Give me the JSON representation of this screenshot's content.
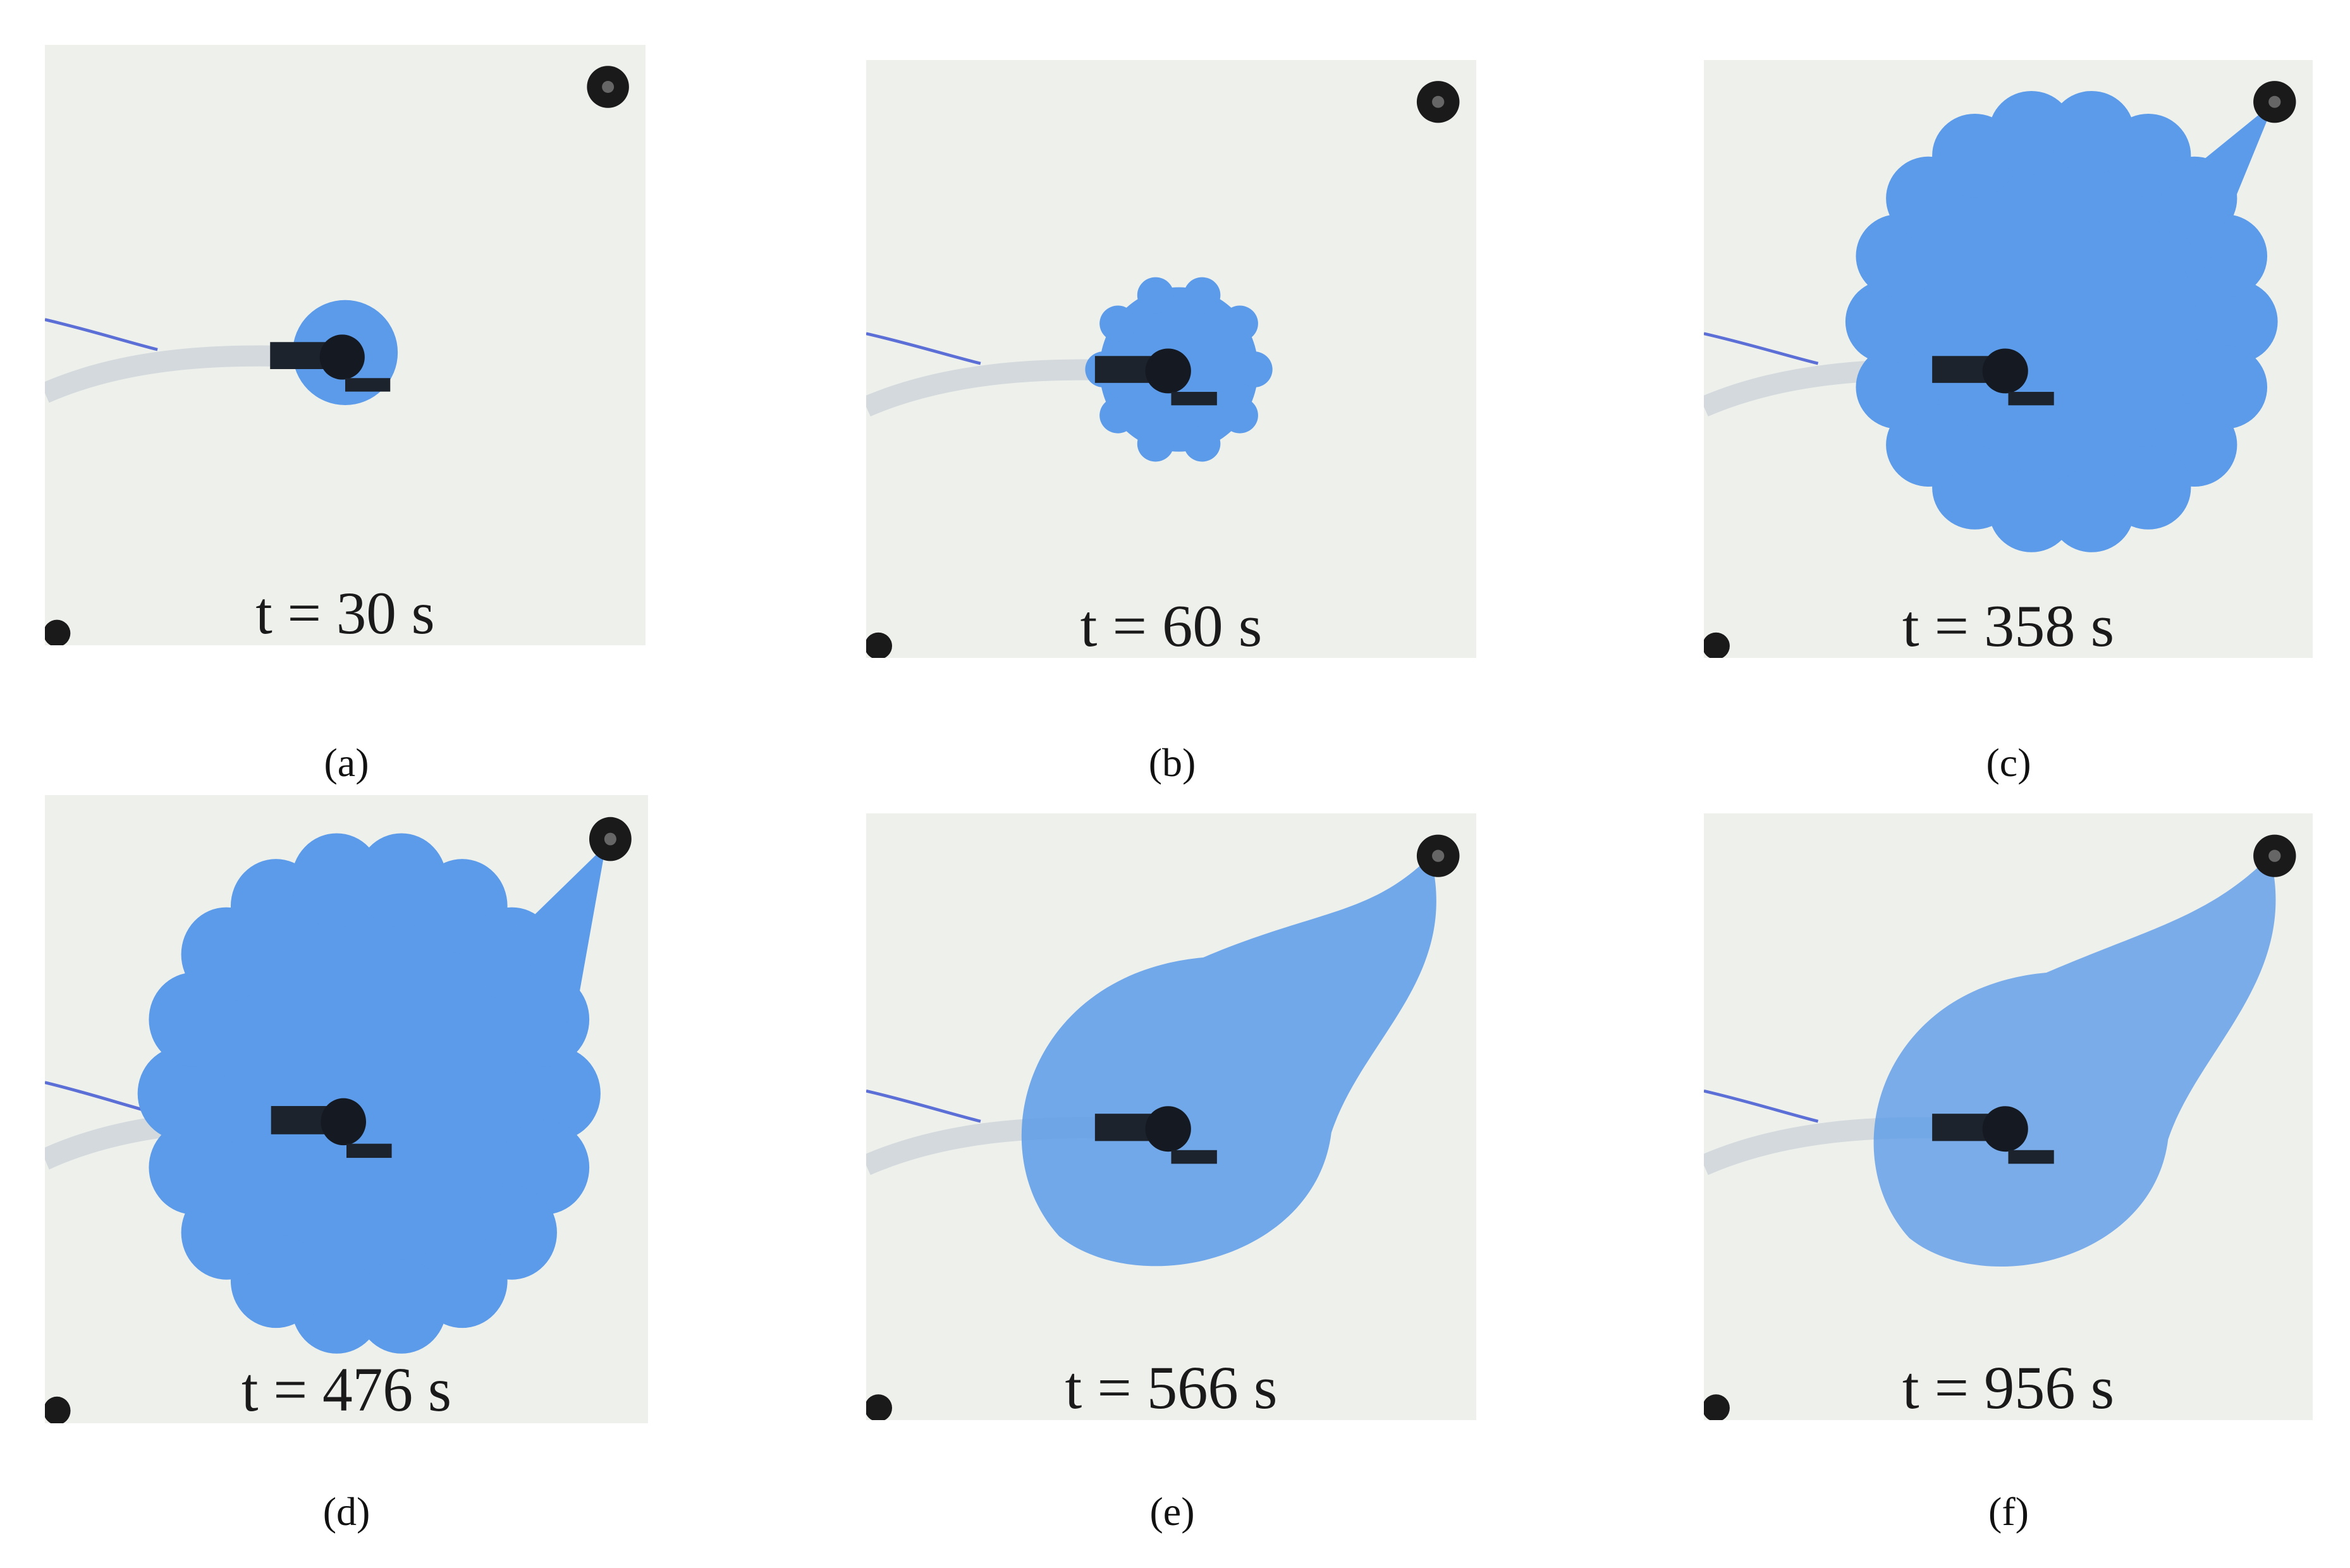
{
  "panels": [
    {
      "time_label": "t = 30 s",
      "caption": "(a)"
    },
    {
      "time_label": "t = 60 s",
      "caption": "(b)"
    },
    {
      "time_label": "t = 358 s",
      "caption": "(c)"
    },
    {
      "time_label": "t = 476 s",
      "caption": "(d)"
    },
    {
      "time_label": "t = 566 s",
      "caption": "(e)"
    },
    {
      "time_label": "t = 956 s",
      "caption": "(f)"
    }
  ]
}
